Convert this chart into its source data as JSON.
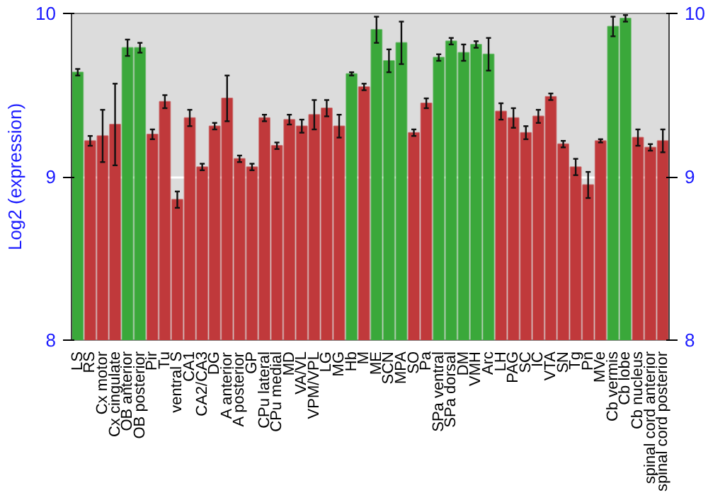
{
  "chart_data": {
    "type": "bar",
    "ylabel": "Log2 (expression)",
    "categories": [
      "LS",
      "RS",
      "Cx motor",
      "Cx cingulate",
      "OB anterior",
      "OB posterior",
      "Pir",
      "Tu",
      "ventral S",
      "CA1",
      "CA2/CA3",
      "DG",
      "A anterior",
      "A posterior",
      "GP",
      "CPu lateral",
      "CPu medial",
      "MD",
      "VA/VL",
      "VPM/VPL",
      "LG",
      "MG",
      "Hb",
      "M",
      "ME",
      "SCN",
      "MPA",
      "SO",
      "Pa",
      "SPa ventral",
      "SPa dorsal",
      "DM",
      "VMH",
      "Arc",
      "LH",
      "PAG",
      "SC",
      "IC",
      "VTA",
      "SN",
      "Tg",
      "Pn",
      "MVe",
      "Cb vermis",
      "Cb lobe",
      "Cb nucleus",
      "spinal cord anterior",
      "spinal cord posterior"
    ],
    "values": [
      9.64,
      9.22,
      9.25,
      9.32,
      9.79,
      9.79,
      9.26,
      9.46,
      8.86,
      9.36,
      9.06,
      9.31,
      9.48,
      9.11,
      9.06,
      9.36,
      9.19,
      9.35,
      9.31,
      9.38,
      9.42,
      9.31,
      9.63,
      9.55,
      9.9,
      9.71,
      9.82,
      9.27,
      9.45,
      9.73,
      9.83,
      9.76,
      9.81,
      9.75,
      9.4,
      9.36,
      9.27,
      9.37,
      9.49,
      9.2,
      9.06,
      8.95,
      9.22,
      9.92,
      9.97,
      9.24,
      9.18,
      9.22
    ],
    "errors": [
      0.02,
      0.03,
      0.16,
      0.25,
      0.05,
      0.03,
      0.03,
      0.04,
      0.05,
      0.05,
      0.02,
      0.02,
      0.14,
      0.02,
      0.02,
      0.02,
      0.02,
      0.03,
      0.04,
      0.09,
      0.05,
      0.07,
      0.01,
      0.02,
      0.08,
      0.07,
      0.13,
      0.02,
      0.03,
      0.02,
      0.02,
      0.05,
      0.02,
      0.1,
      0.05,
      0.06,
      0.04,
      0.04,
      0.02,
      0.02,
      0.05,
      0.08,
      0.01,
      0.06,
      0.02,
      0.05,
      0.02,
      0.07
    ],
    "colors": [
      "#3aa83a",
      "#c0393b",
      "#c0393b",
      "#c0393b",
      "#3aa83a",
      "#3aa83a",
      "#c0393b",
      "#c0393b",
      "#c0393b",
      "#c0393b",
      "#c0393b",
      "#c0393b",
      "#c0393b",
      "#c0393b",
      "#c0393b",
      "#c0393b",
      "#c0393b",
      "#c0393b",
      "#c0393b",
      "#c0393b",
      "#c0393b",
      "#c0393b",
      "#3aa83a",
      "#c0393b",
      "#3aa83a",
      "#3aa83a",
      "#3aa83a",
      "#c0393b",
      "#c0393b",
      "#3aa83a",
      "#3aa83a",
      "#3aa83a",
      "#3aa83a",
      "#3aa83a",
      "#c0393b",
      "#c0393b",
      "#c0393b",
      "#c0393b",
      "#c0393b",
      "#c0393b",
      "#c0393b",
      "#c0393b",
      "#c0393b",
      "#3aa83a",
      "#3aa83a",
      "#c0393b",
      "#c0393b",
      "#c0393b"
    ],
    "ylim": [
      8,
      10
    ],
    "yticks": [
      8,
      9,
      10
    ],
    "y2lim": [
      8,
      10
    ],
    "y2ticks": [
      8,
      9,
      10
    ],
    "grid": "y"
  }
}
